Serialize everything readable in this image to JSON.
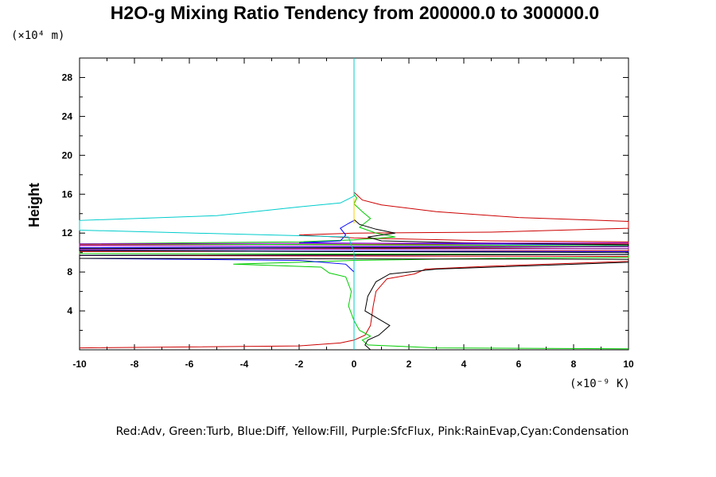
{
  "chart_data": {
    "type": "line",
    "title": "H2O-g Mixing Ratio Tendency from 200000.0 to 300000.0",
    "xlabel": "",
    "ylabel": "Height",
    "x_unit": "(×10⁻⁹ K)",
    "y_unit": "(×10⁴ m)",
    "xlim": [
      -10,
      10
    ],
    "ylim": [
      0,
      30
    ],
    "x_ticks": [
      -10,
      -8,
      -6,
      -4,
      -2,
      0,
      2,
      4,
      6,
      8,
      10
    ],
    "x_tick_labels": [
      "-10",
      "-8",
      "-6",
      "-4",
      "-2",
      "0",
      "2",
      "4",
      "6",
      "8",
      "10"
    ],
    "y_ticks": [
      4,
      8,
      12,
      16,
      20,
      24,
      28
    ],
    "y_tick_labels": [
      "4",
      "8",
      "12",
      "16",
      "20",
      "24",
      "28"
    ],
    "legend_text": "Red:Adv, Green:Turb, Blue:Diff, Yellow:Fill, Purple:SfcFlux, Pink:RainEvap,Cyan:Condensation",
    "series": [
      {
        "color": "#cc0000",
        "points": [
          [
            -10,
            0.2
          ],
          [
            -2,
            0.4
          ],
          [
            -0.5,
            0.7
          ],
          [
            0,
            1.0
          ],
          [
            0.4,
            1.5
          ],
          [
            0.6,
            2.5
          ],
          [
            0.7,
            4.5
          ],
          [
            0.8,
            6.0
          ],
          [
            1.2,
            7.3
          ],
          [
            2.2,
            7.8
          ],
          [
            2.6,
            8.3
          ],
          [
            5,
            8.6
          ],
          [
            8,
            8.9
          ],
          [
            10,
            9.1
          ],
          [
            10,
            9.6
          ],
          [
            -10,
            9.7
          ],
          [
            -10,
            10.1
          ],
          [
            10,
            10.2
          ],
          [
            10,
            10.4
          ],
          [
            -10,
            10.5
          ],
          [
            -10,
            10.8
          ],
          [
            10,
            10.9
          ],
          [
            10,
            11.1
          ],
          [
            5,
            11.2
          ],
          [
            0,
            11.5
          ],
          [
            -2,
            11.8
          ],
          [
            0,
            12
          ],
          [
            5,
            12.1
          ],
          [
            10,
            12.5
          ],
          [
            10,
            13.2
          ],
          [
            6,
            13.6
          ],
          [
            3,
            14.2
          ],
          [
            1,
            14.9
          ],
          [
            0.3,
            15.4
          ],
          [
            0,
            16.2
          ]
        ]
      },
      {
        "color": "#00cc00",
        "points": [
          [
            10,
            0.1
          ],
          [
            3,
            0.2
          ],
          [
            0.5,
            0.5
          ],
          [
            0.3,
            1.0
          ],
          [
            0.6,
            1.4
          ],
          [
            0.2,
            2.0
          ],
          [
            0,
            3.0
          ],
          [
            -0.2,
            4.5
          ],
          [
            -0.1,
            6.0
          ],
          [
            -0.3,
            7.5
          ],
          [
            -0.9,
            7.9
          ],
          [
            -1.2,
            8.5
          ],
          [
            -4.4,
            8.8
          ],
          [
            -2,
            9.0
          ],
          [
            0,
            9.2
          ],
          [
            5,
            9.4
          ],
          [
            10,
            9.5
          ],
          [
            10,
            9.8
          ],
          [
            -10,
            9.9
          ],
          [
            -10,
            10.3
          ],
          [
            10,
            10.4
          ],
          [
            10,
            10.7
          ],
          [
            -10,
            10.9
          ],
          [
            -2,
            11.1
          ],
          [
            0,
            11.3
          ],
          [
            1.5,
            11.6
          ],
          [
            0.8,
            12.0
          ],
          [
            0.2,
            12.6
          ],
          [
            0.6,
            13.5
          ],
          [
            0.3,
            14.2
          ],
          [
            0,
            15.0
          ],
          [
            0.1,
            15.6
          ],
          [
            0,
            16.0
          ]
        ]
      },
      {
        "color": "#0000ff",
        "points": [
          [
            0,
            0
          ],
          [
            0,
            0.8
          ],
          [
            0,
            2.0
          ],
          [
            0,
            4.0
          ],
          [
            0,
            6.0
          ],
          [
            0,
            8.0
          ],
          [
            -0.3,
            8.8
          ],
          [
            -2,
            9.2
          ],
          [
            -10,
            9.4
          ],
          [
            -10,
            9.7
          ],
          [
            10,
            9.8
          ],
          [
            10,
            10.1
          ],
          [
            -10,
            10.2
          ],
          [
            -10,
            10.5
          ],
          [
            10,
            10.6
          ],
          [
            10,
            10.8
          ],
          [
            -2,
            11.0
          ],
          [
            -0.5,
            11.2
          ],
          [
            -0.3,
            11.8
          ],
          [
            -0.5,
            12.5
          ],
          [
            -0.2,
            13.0
          ],
          [
            0,
            13.3
          ]
        ]
      },
      {
        "color": "#000000",
        "points": [
          [
            0.6,
            0
          ],
          [
            0.4,
            0.5
          ],
          [
            0.5,
            1.0
          ],
          [
            0.9,
            1.5
          ],
          [
            1.3,
            2.5
          ],
          [
            1.0,
            3.0
          ],
          [
            0.4,
            4.0
          ],
          [
            0.5,
            5.5
          ],
          [
            0.8,
            7.0
          ],
          [
            1.3,
            7.8
          ],
          [
            3,
            8.3
          ],
          [
            7,
            8.7
          ],
          [
            10,
            9.0
          ],
          [
            10,
            9.3
          ],
          [
            -10,
            9.4
          ],
          [
            -10,
            9.7
          ],
          [
            10,
            9.8
          ],
          [
            10,
            10.0
          ],
          [
            -10,
            10.2
          ],
          [
            -10,
            10.4
          ],
          [
            10,
            10.6
          ],
          [
            10,
            10.8
          ],
          [
            4,
            11.0
          ],
          [
            1,
            11.2
          ],
          [
            0.5,
            11.6
          ],
          [
            1.5,
            12.0
          ],
          [
            0.8,
            12.4
          ],
          [
            0.2,
            12.9
          ],
          [
            0,
            13.4
          ]
        ]
      },
      {
        "color": "#9900cc",
        "points": [
          [
            -10,
            10.3
          ],
          [
            10,
            10.4
          ],
          [
            10,
            10.6
          ],
          [
            -10,
            10.7
          ],
          [
            -10,
            10.9
          ],
          [
            10,
            11.0
          ]
        ]
      },
      {
        "color": "#ffcc00",
        "points": [
          [
            0,
            13.0
          ],
          [
            0,
            14.0
          ],
          [
            0,
            15.0
          ],
          [
            0,
            15.6
          ]
        ]
      },
      {
        "color": "#00cccc",
        "points": [
          [
            0,
            0
          ],
          [
            0,
            10
          ],
          [
            -0.2,
            11.6
          ],
          [
            -10,
            12.3
          ],
          [
            -10,
            13.3
          ],
          [
            -5,
            13.8
          ],
          [
            -2,
            14.7
          ],
          [
            -0.5,
            15.1
          ],
          [
            0,
            15.8
          ],
          [
            0,
            20
          ],
          [
            0,
            30
          ]
        ]
      }
    ]
  }
}
